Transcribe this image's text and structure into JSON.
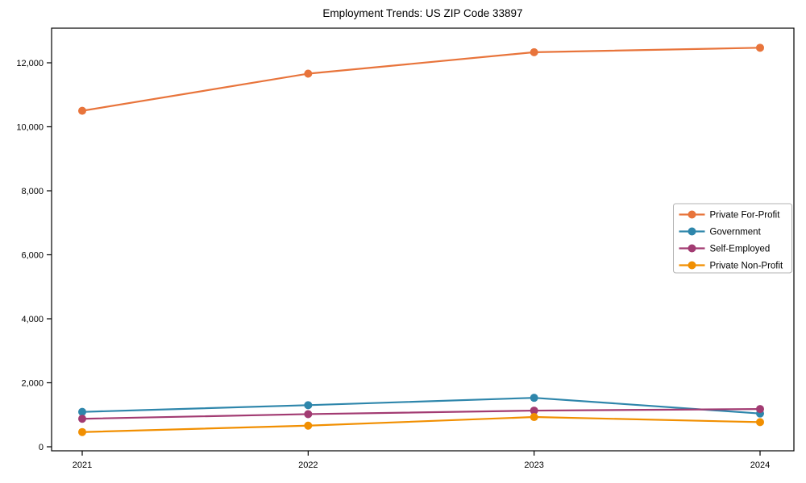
{
  "chart_data": {
    "type": "line",
    "title": "Employment Trends: US ZIP Code 33897",
    "xlabel": "",
    "ylabel": "",
    "x_categories": [
      "2021",
      "2022",
      "2023",
      "2024"
    ],
    "series": [
      {
        "name": "Private For-Profit",
        "color": "#E8743B",
        "values": [
          10500,
          11660,
          12330,
          12470
        ]
      },
      {
        "name": "Government",
        "color": "#2E86AB",
        "values": [
          1090,
          1300,
          1530,
          1040
        ]
      },
      {
        "name": "Self-Employed",
        "color": "#A23B72",
        "values": [
          875,
          1020,
          1130,
          1180
        ]
      },
      {
        "name": "Private Non-Profit",
        "color": "#F18F01",
        "values": [
          460,
          660,
          930,
          770
        ]
      }
    ],
    "yticks": [
      0,
      2000,
      4000,
      6000,
      8000,
      10000,
      12000
    ],
    "ytick_labels": [
      "0",
      "2,000",
      "4,000",
      "6,000",
      "8,000",
      "10,000",
      "12,000"
    ],
    "ylim": [
      0,
      12000
    ],
    "grid": false,
    "legend_position": "center-right",
    "marker": "circle",
    "frame": true,
    "axis_color": "#000000",
    "legend_border_color": "#b3b3b3"
  }
}
